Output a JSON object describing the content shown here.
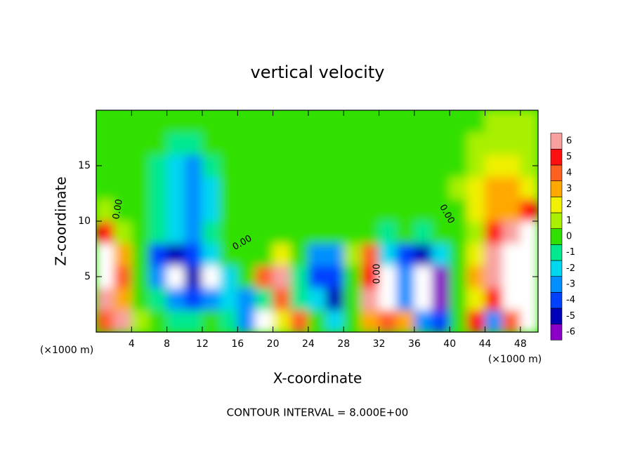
{
  "chart_data": {
    "type": "heatmap",
    "title": "vertical velocity",
    "x_label": "X-coordinate",
    "y_label": "Z-coordinate",
    "x_unit": "(×1000 m)",
    "footer": "CONTOUR INTERVAL = 8.000E+00",
    "annotations": [
      "0.00",
      "0.00",
      "0.00",
      "0.00"
    ],
    "xlim": [
      0,
      50
    ],
    "ylim": [
      0,
      20
    ],
    "xticks": [
      4,
      8,
      12,
      16,
      20,
      24,
      28,
      32,
      36,
      40,
      44,
      48
    ],
    "yticks": [
      5,
      10,
      15
    ],
    "x": [
      1,
      3,
      5,
      7,
      9,
      11,
      13,
      15,
      17,
      19,
      21,
      23,
      25,
      27,
      29,
      31,
      33,
      35,
      37,
      39,
      41,
      43,
      45,
      47,
      49
    ],
    "y": [
      1,
      3,
      5,
      7,
      9,
      11,
      13,
      15,
      17,
      19
    ],
    "values": [
      [
        4,
        6,
        1,
        0,
        -1,
        -1,
        0,
        -1,
        -3,
        -7,
        2,
        4,
        0,
        -2,
        0,
        3,
        4,
        3,
        -3,
        -4,
        0,
        5,
        -3,
        4,
        7
      ],
      [
        6,
        3,
        0,
        -1,
        -3,
        -4,
        -3,
        -2,
        -3,
        -1,
        4,
        -1,
        -2,
        -5,
        0,
        6,
        8,
        -3,
        -7,
        -6,
        0,
        2,
        5,
        7,
        8
      ],
      [
        8,
        4,
        0,
        -3,
        -7,
        -5,
        -7,
        -2,
        0,
        4,
        6,
        -1,
        -4,
        -4,
        0,
        5,
        8,
        -3,
        -7,
        -6,
        0,
        3,
        6,
        7,
        7
      ],
      [
        7,
        3,
        0,
        -4,
        -5,
        -4,
        -2,
        0,
        0,
        0,
        2,
        0,
        -3,
        -3,
        1,
        4,
        -2,
        -4,
        -5,
        -2,
        0,
        2,
        6,
        7,
        7
      ],
      [
        5,
        1,
        0,
        -1,
        -2,
        -3,
        -1,
        0,
        0,
        0,
        0,
        0,
        0,
        0,
        0,
        0,
        -1,
        0,
        -1,
        0,
        0,
        1,
        5,
        6,
        7
      ],
      [
        1,
        0,
        0,
        -1,
        -2,
        -3,
        -2,
        0,
        0,
        0,
        0,
        0,
        0,
        0,
        0,
        0,
        0,
        0,
        0,
        0,
        0,
        2,
        3,
        3,
        5
      ],
      [
        0,
        0,
        0,
        -1,
        -2,
        -3,
        -2,
        0,
        0,
        0,
        0,
        0,
        0,
        0,
        0,
        0,
        0,
        0,
        0,
        0,
        1,
        2,
        3,
        3,
        2
      ],
      [
        0,
        0,
        0,
        -1,
        -2,
        -3,
        -1,
        0,
        0,
        0,
        0,
        0,
        0,
        0,
        0,
        0,
        0,
        0,
        0,
        0,
        0,
        1,
        2,
        2,
        1
      ],
      [
        0,
        0,
        0,
        0,
        -1,
        -1,
        0,
        0,
        0,
        0,
        0,
        0,
        0,
        0,
        0,
        0,
        0,
        0,
        0,
        0,
        0,
        1,
        1,
        1,
        1
      ],
      [
        0,
        0,
        0,
        0,
        0,
        0,
        0,
        0,
        0,
        0,
        0,
        0,
        0,
        0,
        0,
        0,
        0,
        0,
        0,
        0,
        0,
        0.5,
        1,
        1,
        1
      ]
    ],
    "colorbar": {
      "levels": [
        -6,
        -5,
        -4,
        -3,
        -2,
        -1,
        0,
        1,
        2,
        3,
        4,
        5,
        6
      ],
      "colors": [
        "#8a00c8",
        "#0000b8",
        "#0040ff",
        "#0090ff",
        "#00d8f0",
        "#00e890",
        "#30e000",
        "#a8f000",
        "#f0f000",
        "#ffa800",
        "#ff6020",
        "#ff1010",
        "#f8a0a0"
      ]
    }
  }
}
